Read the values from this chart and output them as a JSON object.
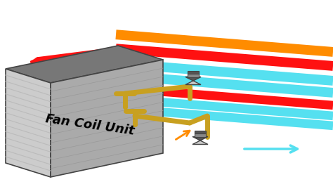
{
  "bg_color": "#ffffff",
  "colors": {
    "red": "#ff1111",
    "orange": "#ff8c00",
    "cyan": "#00d4e8",
    "light_cyan": "#55e0f0",
    "gold": "#c8a020",
    "gray_top": "#777777",
    "gray_front": "#cccccc",
    "gray_side": "#aaaaaa",
    "gray_stripe": "#bbbbbb",
    "gray_dark": "#444444",
    "gray_valve_dark": "#555555",
    "gray_valve_light": "#cccccc",
    "white": "#ffffff",
    "black": "#000000"
  },
  "fcu_label": "Fan Coil Unit",
  "fcu_label_fontsize": 13
}
